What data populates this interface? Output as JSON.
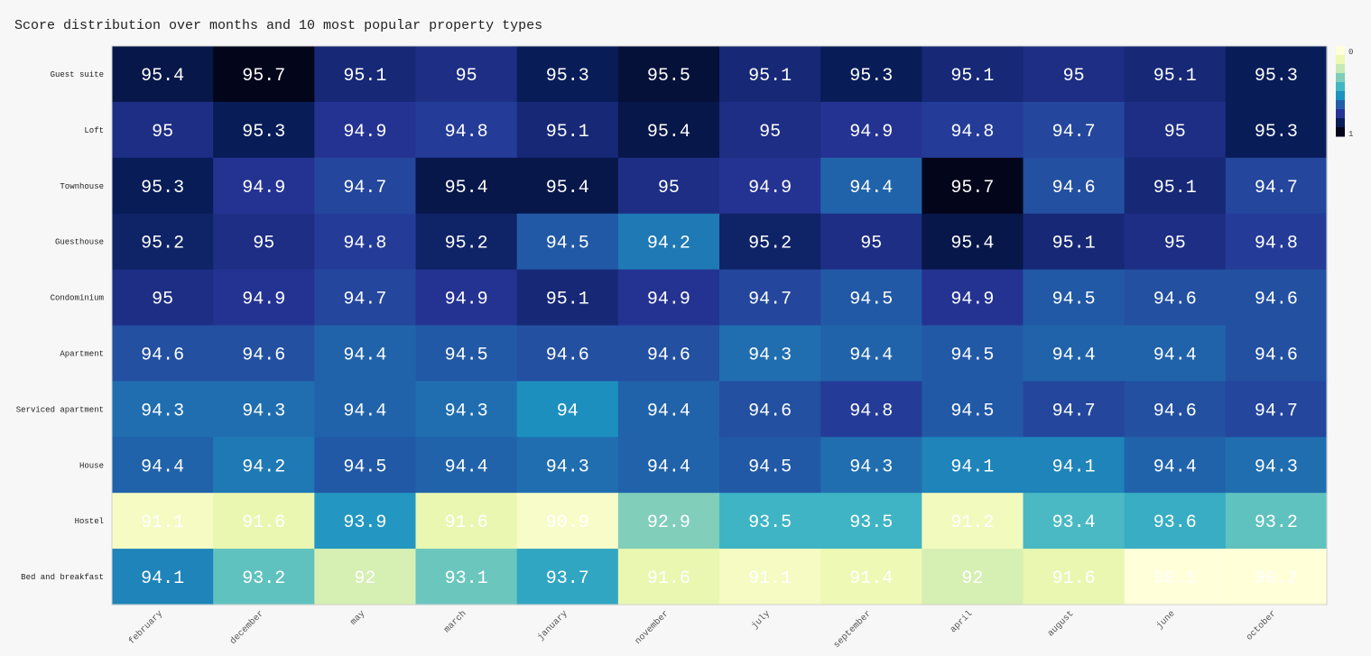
{
  "chart_data": {
    "type": "heatmap",
    "title": "Score distribution over months and 10 most popular property types",
    "xlabel": "",
    "ylabel": "",
    "x": [
      "february",
      "december",
      "may",
      "march",
      "january",
      "november",
      "july",
      "september",
      "april",
      "august",
      "june",
      "october"
    ],
    "y": [
      "Guest suite",
      "Loft",
      "Townhouse",
      "Guesthouse",
      "Condominium",
      "Apartment",
      "Serviced apartment",
      "House",
      "Hostel",
      "Bed and breakfast"
    ],
    "values": [
      [
        95.4,
        95.7,
        95.1,
        95,
        95.3,
        95.5,
        95.1,
        95.3,
        95.1,
        95,
        95.1,
        95.3
      ],
      [
        95,
        95.3,
        94.9,
        94.8,
        95.1,
        95.4,
        95,
        94.9,
        94.8,
        94.7,
        95,
        95.3
      ],
      [
        95.3,
        94.9,
        94.7,
        95.4,
        95.4,
        95,
        94.9,
        94.4,
        95.7,
        94.6,
        95.1,
        94.7
      ],
      [
        95.2,
        95,
        94.8,
        95.2,
        94.5,
        94.2,
        95.2,
        95,
        95.4,
        95.1,
        95,
        94.8
      ],
      [
        95,
        94.9,
        94.7,
        94.9,
        95.1,
        94.9,
        94.7,
        94.5,
        94.9,
        94.5,
        94.6,
        94.6
      ],
      [
        94.6,
        94.6,
        94.4,
        94.5,
        94.6,
        94.6,
        94.3,
        94.4,
        94.5,
        94.4,
        94.4,
        94.6
      ],
      [
        94.3,
        94.3,
        94.4,
        94.3,
        94,
        94.4,
        94.6,
        94.8,
        94.5,
        94.7,
        94.6,
        94.7
      ],
      [
        94.4,
        94.2,
        94.5,
        94.4,
        94.3,
        94.4,
        94.5,
        94.3,
        94.1,
        94.1,
        94.4,
        94.3
      ],
      [
        91.1,
        91.6,
        93.9,
        91.6,
        90.9,
        92.9,
        93.5,
        93.5,
        91.2,
        93.4,
        93.6,
        93.2
      ],
      [
        94.1,
        93.2,
        92,
        93.1,
        93.7,
        91.6,
        91.1,
        91.4,
        92,
        91.6,
        90.1,
        90.2
      ]
    ],
    "colorscale": [
      "#ffffd9",
      "#edf8b1",
      "#c7e9b4",
      "#7fcdbb",
      "#41b6c4",
      "#1d91c0",
      "#225ea8",
      "#253494",
      "#081d58",
      "#03051a"
    ],
    "colorbar_ticks": [
      "0",
      "1"
    ],
    "value_text_color": "#ffffff",
    "grid": false
  }
}
